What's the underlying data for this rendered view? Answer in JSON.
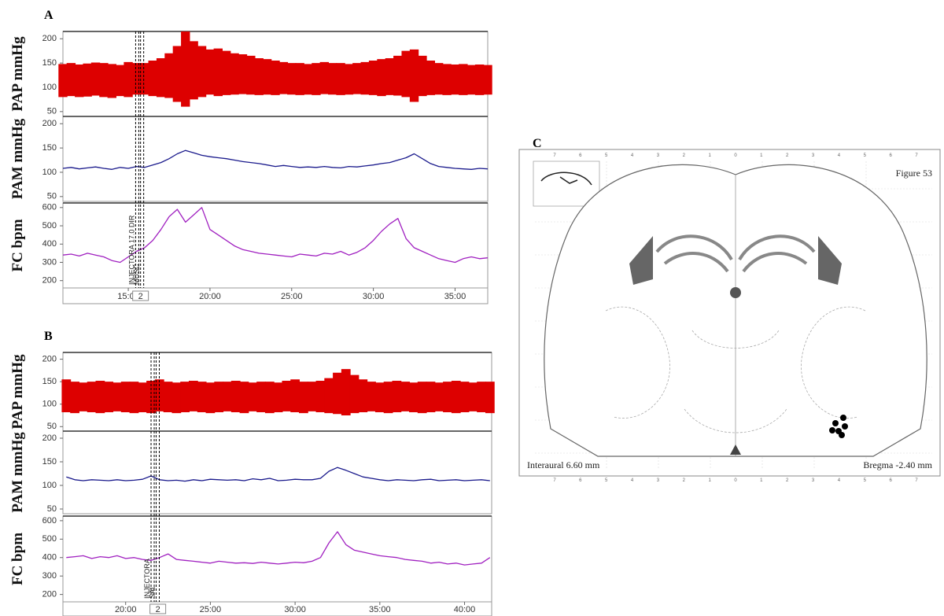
{
  "chart_data": [
    {
      "type": "range",
      "panel": "A",
      "ylabel": "PAP mmHg",
      "color": "#dd0000",
      "xlim": [
        11,
        37
      ],
      "ylim": [
        40,
        215
      ],
      "yticks": [
        50,
        100,
        150,
        200
      ],
      "x": [
        11,
        11.5,
        12,
        12.5,
        13,
        13.5,
        14,
        14.5,
        15,
        15.5,
        16,
        16.5,
        17,
        17.5,
        18,
        18.5,
        19,
        19.5,
        20,
        20.5,
        21,
        21.5,
        22,
        22.5,
        23,
        23.5,
        24,
        24.5,
        25,
        25.5,
        26,
        26.5,
        27,
        27.5,
        28,
        28.5,
        29,
        29.5,
        30,
        30.5,
        31,
        31.5,
        32,
        32.5,
        33,
        33.5,
        34,
        34.5,
        35,
        35.5,
        36,
        36.5,
        37
      ],
      "high": [
        148,
        150,
        147,
        149,
        151,
        150,
        148,
        146,
        152,
        150,
        150,
        155,
        160,
        170,
        185,
        215,
        195,
        185,
        178,
        180,
        175,
        170,
        168,
        165,
        160,
        158,
        155,
        152,
        150,
        150,
        148,
        150,
        152,
        150,
        150,
        148,
        150,
        152,
        155,
        158,
        160,
        165,
        175,
        178,
        165,
        155,
        150,
        148,
        147,
        148,
        146,
        147,
        146
      ],
      "low": [
        80,
        82,
        80,
        81,
        83,
        80,
        78,
        82,
        80,
        85,
        85,
        82,
        80,
        78,
        70,
        60,
        75,
        80,
        85,
        82,
        84,
        85,
        86,
        85,
        84,
        85,
        84,
        86,
        85,
        84,
        85,
        84,
        86,
        85,
        84,
        85,
        86,
        85,
        84,
        82,
        84,
        83,
        80,
        70,
        82,
        84,
        85,
        84,
        85,
        84,
        85,
        84,
        85
      ]
    },
    {
      "type": "line",
      "ylabel": "PAM mmHg",
      "color": "#1a1a8c",
      "xlim": [
        11,
        37
      ],
      "ylim": [
        40,
        215
      ],
      "yticks": [
        50,
        100,
        150,
        200
      ],
      "x": [
        11,
        11.5,
        12,
        12.5,
        13,
        13.5,
        14,
        14.5,
        15,
        15.5,
        16,
        16.5,
        17,
        17.5,
        18,
        18.5,
        19,
        19.5,
        20,
        20.5,
        21,
        21.5,
        22,
        22.5,
        23,
        23.5,
        24,
        24.5,
        25,
        25.5,
        26,
        26.5,
        27,
        27.5,
        28,
        28.5,
        29,
        29.5,
        30,
        30.5,
        31,
        31.5,
        32,
        32.5,
        33,
        33.5,
        34,
        34.5,
        35,
        35.5,
        36,
        36.5,
        37
      ],
      "values": [
        108,
        110,
        107,
        109,
        111,
        108,
        106,
        110,
        108,
        112,
        110,
        115,
        120,
        128,
        138,
        145,
        140,
        135,
        132,
        130,
        128,
        125,
        122,
        120,
        118,
        115,
        112,
        114,
        112,
        110,
        111,
        110,
        112,
        110,
        109,
        112,
        111,
        113,
        115,
        118,
        120,
        125,
        130,
        138,
        128,
        118,
        112,
        110,
        108,
        107,
        106,
        108,
        107
      ]
    },
    {
      "type": "line",
      "ylabel": "FC bpm",
      "color": "#a020c0",
      "xlim": [
        11,
        37
      ],
      "ylim": [
        160,
        625
      ],
      "yticks": [
        200,
        300,
        400,
        500,
        600
      ],
      "xticks": [
        {
          "value": 15,
          "label": "15:00"
        },
        {
          "value": 20,
          "label": "20:00"
        },
        {
          "value": 25,
          "label": "25:00"
        },
        {
          "value": 30,
          "label": "30:00"
        },
        {
          "value": 35,
          "label": "35:00"
        }
      ],
      "events": [
        {
          "x": 15.45,
          "label": "INJECTORA 17.0 DIR"
        },
        {
          "x": 15.75,
          "label": "MUSC"
        }
      ],
      "marker": {
        "x": 15.75,
        "label": "2"
      },
      "x": [
        11,
        11.5,
        12,
        12.5,
        13,
        13.5,
        14,
        14.5,
        15,
        15.5,
        16,
        16.5,
        17,
        17.5,
        18,
        18.5,
        19,
        19.5,
        20,
        20.5,
        21,
        21.5,
        22,
        22.5,
        23,
        23.5,
        24,
        24.5,
        25,
        25.5,
        26,
        26.5,
        27,
        27.5,
        28,
        28.5,
        29,
        29.5,
        30,
        30.5,
        31,
        31.5,
        32,
        32.5,
        33,
        33.5,
        34,
        34.5,
        35,
        35.5,
        36,
        36.5,
        37
      ],
      "values": [
        340,
        345,
        335,
        350,
        340,
        330,
        310,
        300,
        330,
        360,
        380,
        420,
        480,
        550,
        590,
        520,
        560,
        600,
        480,
        450,
        420,
        390,
        370,
        360,
        350,
        345,
        340,
        335,
        330,
        345,
        340,
        335,
        350,
        345,
        360,
        340,
        355,
        380,
        420,
        470,
        510,
        540,
        430,
        380,
        360,
        340,
        320,
        310,
        300,
        320,
        330,
        320,
        325
      ]
    },
    {
      "type": "range",
      "panel": "B",
      "ylabel": "PAP mmHg",
      "color": "#dd0000",
      "xlim": [
        16.3,
        41.6
      ],
      "ylim": [
        40,
        215
      ],
      "yticks": [
        50,
        100,
        150,
        200
      ],
      "x": [
        16.5,
        17,
        17.5,
        18,
        18.5,
        19,
        19.5,
        20,
        20.5,
        21,
        21.5,
        22,
        22.5,
        23,
        23.5,
        24,
        24.5,
        25,
        25.5,
        26,
        26.5,
        27,
        27.5,
        28,
        28.5,
        29,
        29.5,
        30,
        30.5,
        31,
        31.5,
        32,
        32.5,
        33,
        33.5,
        34,
        34.5,
        35,
        35.5,
        36,
        36.5,
        37,
        37.5,
        38,
        38.5,
        39,
        39.5,
        40,
        40.5,
        41,
        41.5
      ],
      "high": [
        155,
        150,
        148,
        150,
        152,
        150,
        148,
        150,
        150,
        148,
        152,
        155,
        150,
        148,
        150,
        152,
        150,
        148,
        150,
        150,
        152,
        150,
        148,
        150,
        150,
        148,
        152,
        155,
        150,
        150,
        152,
        158,
        170,
        178,
        165,
        155,
        150,
        148,
        150,
        152,
        150,
        148,
        150,
        150,
        148,
        150,
        152,
        150,
        148,
        150,
        150
      ],
      "low": [
        82,
        80,
        84,
        82,
        80,
        82,
        84,
        82,
        80,
        82,
        80,
        84,
        82,
        80,
        82,
        84,
        82,
        80,
        82,
        84,
        82,
        80,
        84,
        82,
        80,
        82,
        84,
        82,
        80,
        84,
        82,
        80,
        78,
        75,
        80,
        82,
        84,
        82,
        80,
        82,
        84,
        82,
        80,
        82,
        84,
        82,
        80,
        82,
        84,
        82,
        80
      ]
    },
    {
      "type": "line",
      "ylabel": "PAM mmHg",
      "color": "#1a1a8c",
      "xlim": [
        16.3,
        41.6
      ],
      "ylim": [
        40,
        215
      ],
      "yticks": [
        50,
        100,
        150,
        200
      ],
      "x": [
        16.5,
        17,
        17.5,
        18,
        18.5,
        19,
        19.5,
        20,
        20.5,
        21,
        21.5,
        22,
        22.5,
        23,
        23.5,
        24,
        24.5,
        25,
        25.5,
        26,
        26.5,
        27,
        27.5,
        28,
        28.5,
        29,
        29.5,
        30,
        30.5,
        31,
        31.5,
        32,
        32.5,
        33,
        33.5,
        34,
        34.5,
        35,
        35.5,
        36,
        36.5,
        37,
        37.5,
        38,
        38.5,
        39,
        39.5,
        40,
        40.5,
        41,
        41.5
      ],
      "values": [
        118,
        112,
        110,
        112,
        111,
        110,
        112,
        110,
        111,
        113,
        120,
        112,
        110,
        111,
        109,
        112,
        110,
        113,
        112,
        111,
        112,
        110,
        114,
        112,
        115,
        110,
        111,
        113,
        112,
        112,
        115,
        130,
        138,
        132,
        125,
        118,
        115,
        112,
        110,
        112,
        111,
        110,
        112,
        113,
        110,
        111,
        112,
        110,
        111,
        112,
        110
      ]
    },
    {
      "type": "line",
      "ylabel": "FC bpm",
      "color": "#a020c0",
      "xlim": [
        16.3,
        41.6
      ],
      "ylim": [
        160,
        625
      ],
      "yticks": [
        200,
        300,
        400,
        500,
        600
      ],
      "xticks": [
        {
          "value": 20,
          "label": "20:00"
        },
        {
          "value": 25,
          "label": "25:00"
        },
        {
          "value": 30,
          "label": "30:00"
        },
        {
          "value": 35,
          "label": "35:00"
        },
        {
          "value": 40,
          "label": "40:00"
        }
      ],
      "events": [
        {
          "x": 21.5,
          "label": "INJECTORA"
        },
        {
          "x": 21.8,
          "label": "SAL"
        }
      ],
      "marker": {
        "x": 21.9,
        "label": "2"
      },
      "x": [
        16.5,
        17,
        17.5,
        18,
        18.5,
        19,
        19.5,
        20,
        20.5,
        21,
        21.5,
        22,
        22.5,
        23,
        23.5,
        24,
        24.5,
        25,
        25.5,
        26,
        26.5,
        27,
        27.5,
        28,
        28.5,
        29,
        29.5,
        30,
        30.5,
        31,
        31.5,
        32,
        32.5,
        33,
        33.5,
        34,
        34.5,
        35,
        35.5,
        36,
        36.5,
        37,
        37.5,
        38,
        38.5,
        39,
        39.5,
        40,
        40.5,
        41,
        41.5
      ],
      "values": [
        400,
        405,
        410,
        395,
        405,
        400,
        410,
        395,
        400,
        390,
        385,
        400,
        420,
        390,
        385,
        380,
        375,
        370,
        380,
        375,
        370,
        372,
        368,
        375,
        370,
        365,
        370,
        375,
        372,
        380,
        400,
        480,
        540,
        470,
        440,
        430,
        420,
        410,
        405,
        400,
        390,
        385,
        380,
        370,
        375,
        365,
        370,
        360,
        365,
        370,
        400
      ]
    }
  ],
  "atlas": {
    "label": "C",
    "figure": "Figure 53",
    "interaural": "Interaural 6.60 mm",
    "bregma": "Bregma -2.40 mm",
    "ruler": [
      "7",
      "6",
      "5",
      "4",
      "3",
      "2",
      "1",
      "0",
      "1",
      "2",
      "3",
      "4",
      "5",
      "6",
      "7"
    ]
  }
}
